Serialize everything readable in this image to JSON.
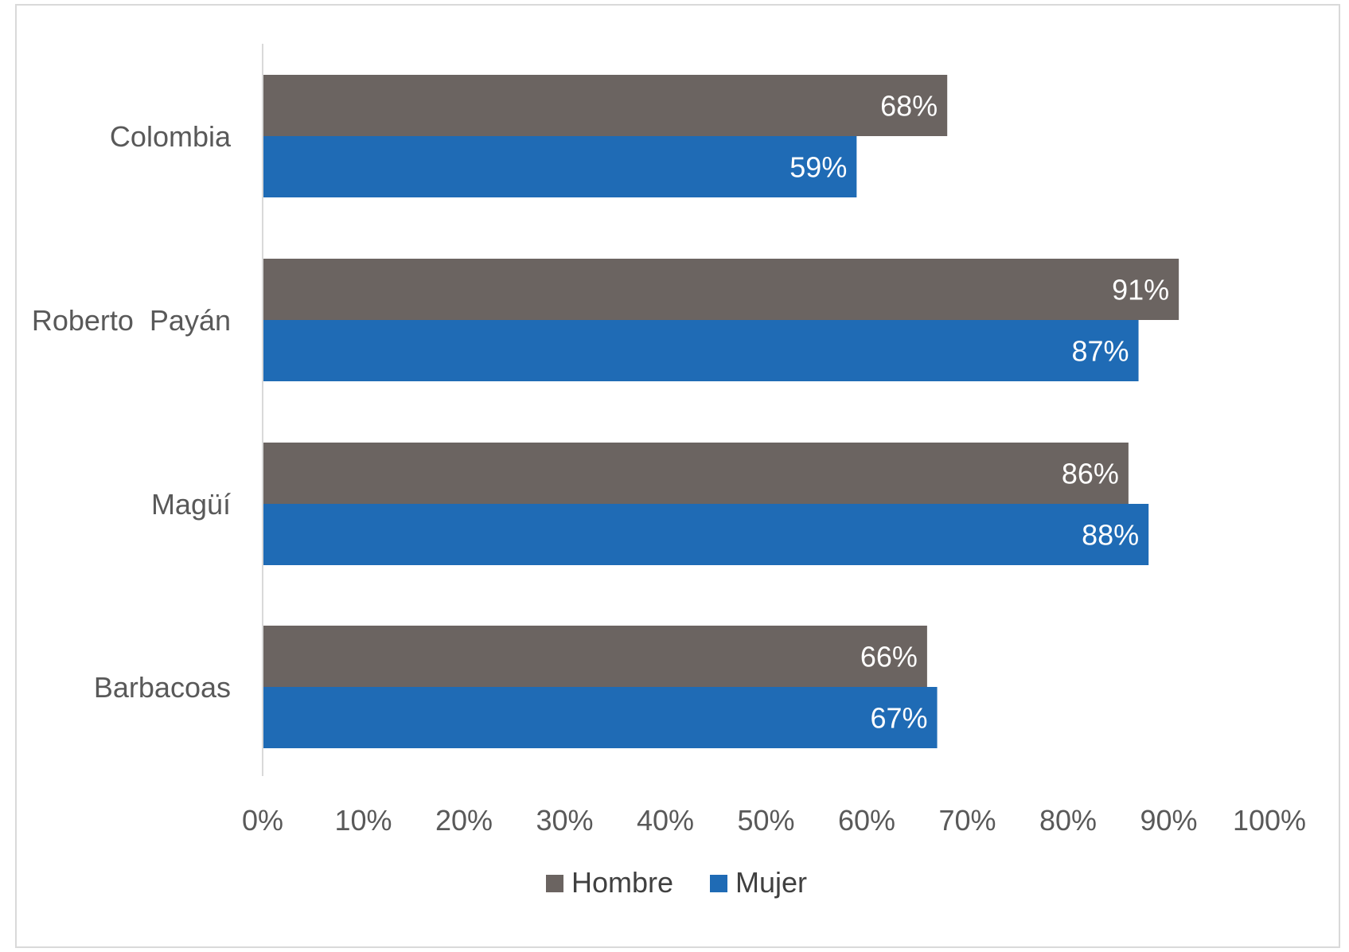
{
  "chart_data": {
    "type": "bar",
    "orientation": "horizontal",
    "categories": [
      "Colombia",
      "Roberto  Payán",
      "Magüí",
      "Barbacoas"
    ],
    "series": [
      {
        "name": "Hombre",
        "values": [
          68,
          91,
          86,
          66
        ],
        "labels": [
          "68%",
          "91%",
          "86%",
          "66%"
        ],
        "color": "#6b6461"
      },
      {
        "name": "Mujer",
        "values": [
          59,
          87,
          88,
          67
        ],
        "labels": [
          "59%",
          "87%",
          "88%",
          "67%"
        ],
        "color": "#1f6bb5"
      }
    ],
    "xlim": [
      0,
      100
    ],
    "xticks": [
      "0%",
      "10%",
      "20%",
      "30%",
      "40%",
      "50%",
      "60%",
      "70%",
      "80%",
      "90%",
      "100%"
    ],
    "grid": false,
    "legend_position": "bottom"
  }
}
